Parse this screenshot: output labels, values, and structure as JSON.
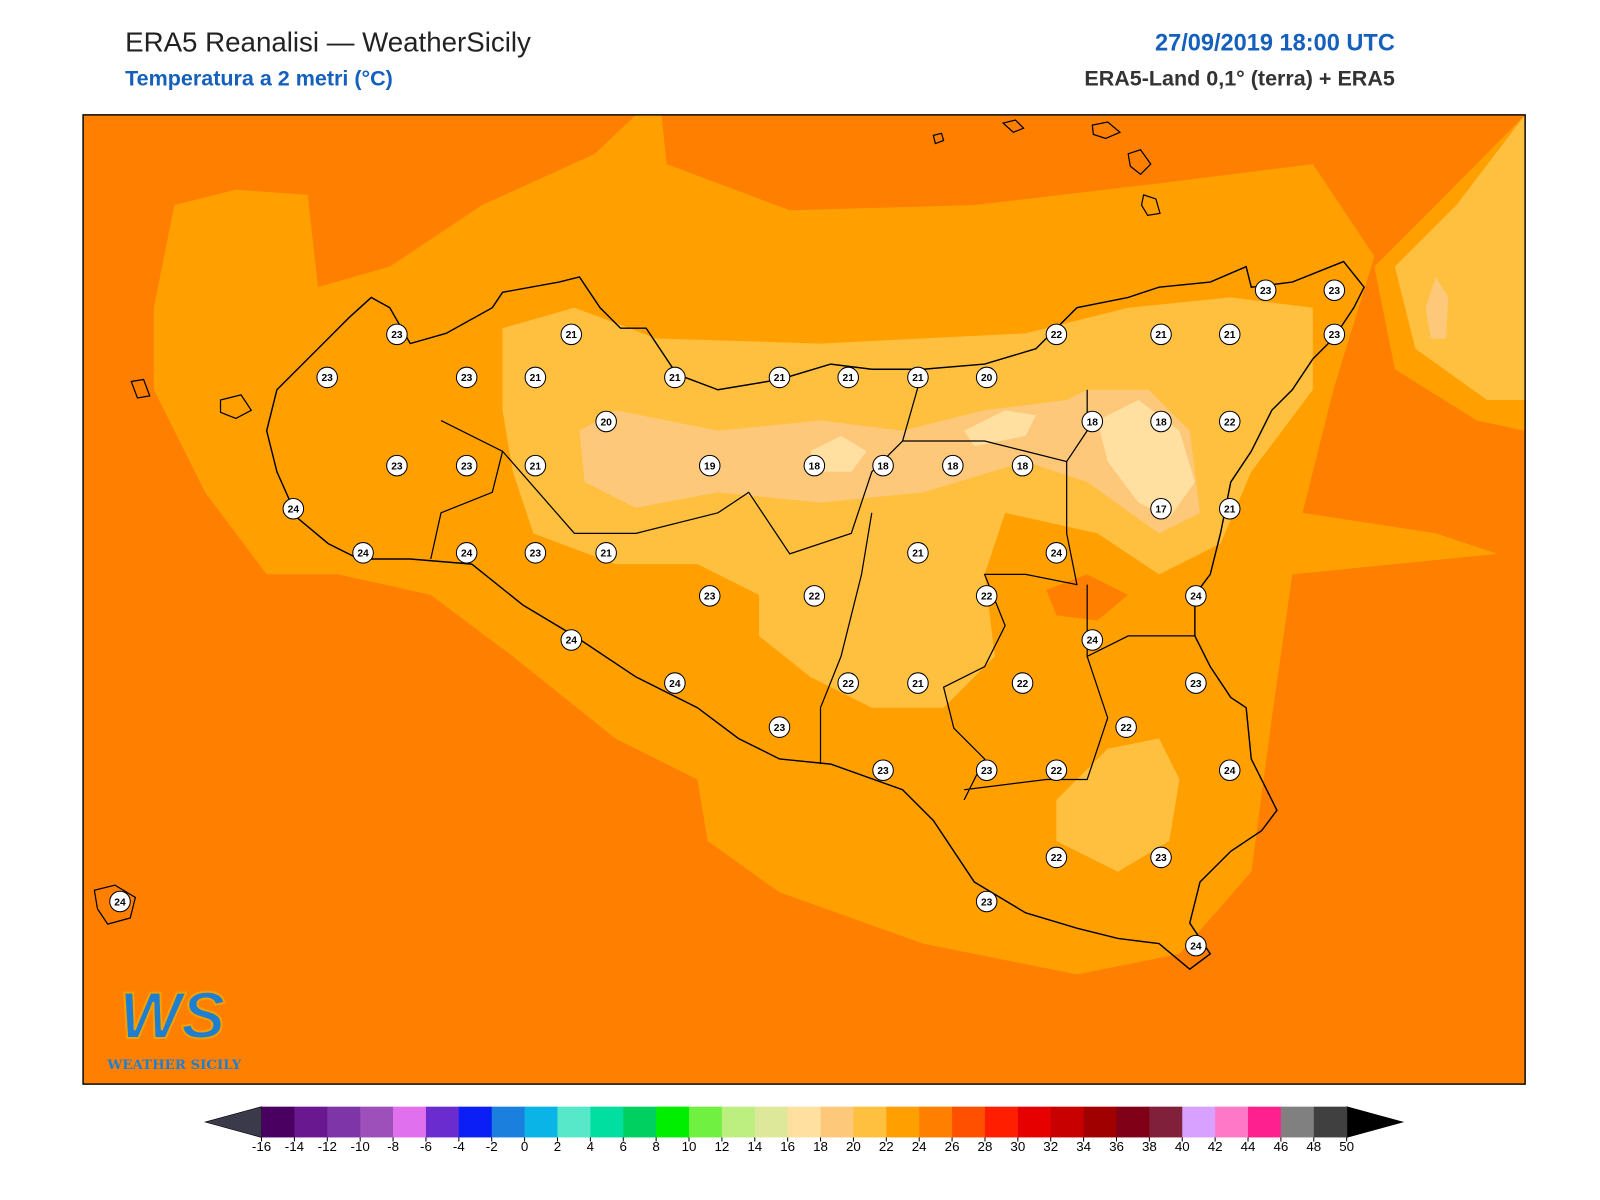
{
  "header": {
    "title": "ERA5 Reanalisi — WeatherSicily",
    "subtitle": "Temperatura a 2 metri (°C)",
    "datetime": "27/09/2019 18:00 UTC",
    "source": "ERA5-Land 0,1° (terra) + ERA5"
  },
  "stations": [
    23,
    21,
    23,
    23,
    21,
    21,
    21,
    21,
    21,
    20,
    22,
    21,
    21,
    23,
    23,
    23,
    20,
    18,
    18,
    22,
    23,
    23,
    21,
    19,
    18,
    18,
    18,
    18,
    17,
    21,
    24,
    24,
    24,
    23,
    21,
    21,
    24,
    23,
    22,
    22,
    24,
    24,
    24,
    24,
    22,
    21,
    22,
    23,
    23,
    22,
    23,
    23,
    22,
    24,
    22,
    23,
    23,
    24,
    24
  ],
  "logo": {
    "mark": "WS",
    "text": "WEATHER SICILY"
  },
  "colorbar": {
    "ticks": [
      -16,
      -14,
      -12,
      -10,
      -8,
      -6,
      -4,
      -2,
      0,
      2,
      4,
      6,
      8,
      10,
      12,
      14,
      16,
      18,
      20,
      22,
      24,
      26,
      28,
      30,
      32,
      34,
      36,
      38,
      40,
      42,
      44,
      46,
      48,
      50
    ],
    "colors": [
      "#4a0060",
      "#6a1890",
      "#7e35a8",
      "#9d4fba",
      "#e070ee",
      "#6a2bcf",
      "#0a1ef5",
      "#1b7fde",
      "#0ab4e6",
      "#56e8c8",
      "#00dfa0",
      "#00d060",
      "#00ee00",
      "#70f040",
      "#bcee80",
      "#dde89a",
      "#ffe0a0",
      "#fdc87a",
      "#ffc040",
      "#ffa000",
      "#ff8000",
      "#ff5000",
      "#ff1e00",
      "#e60000",
      "#c80000",
      "#a00000",
      "#800018",
      "#80203a",
      "#d8a0ff",
      "#ff78c8",
      "#ff2090",
      "#808080",
      "#404040"
    ],
    "under_color": "#3a3a4a",
    "over_color": "#000000"
  }
}
